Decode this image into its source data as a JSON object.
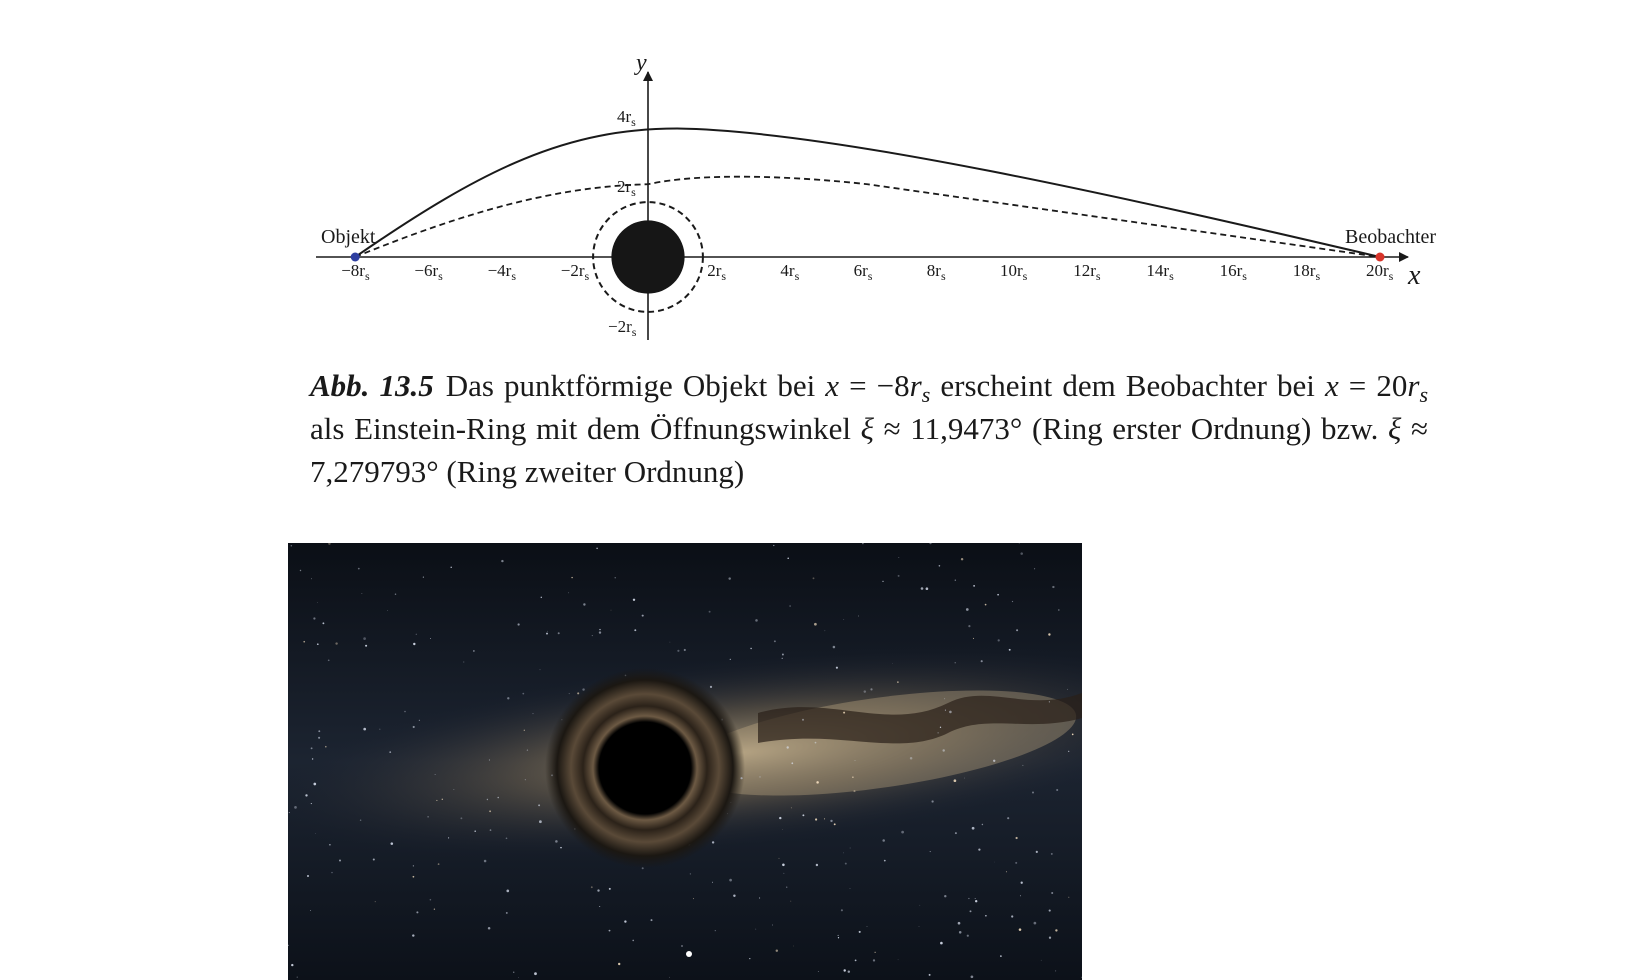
{
  "figure": {
    "axis_x_label": "x",
    "axis_y_label": "y",
    "x_ticks": [
      {
        "value": -8,
        "label": "−8r",
        "sub": "s"
      },
      {
        "value": -6,
        "label": "−6r",
        "sub": "s"
      },
      {
        "value": -4,
        "label": "−4r",
        "sub": "s"
      },
      {
        "value": -2,
        "label": "−2r",
        "sub": "s"
      },
      {
        "value": 2,
        "label": "2r",
        "sub": "s"
      },
      {
        "value": 4,
        "label": "4r",
        "sub": "s"
      },
      {
        "value": 6,
        "label": "6r",
        "sub": "s"
      },
      {
        "value": 8,
        "label": "8r",
        "sub": "s"
      },
      {
        "value": 10,
        "label": "10r",
        "sub": "s"
      },
      {
        "value": 12,
        "label": "12r",
        "sub": "s"
      },
      {
        "value": 14,
        "label": "14r",
        "sub": "s"
      },
      {
        "value": 16,
        "label": "16r",
        "sub": "s"
      },
      {
        "value": 18,
        "label": "18r",
        "sub": "s"
      },
      {
        "value": 20,
        "label": "20r",
        "sub": "s"
      }
    ],
    "y_ticks": [
      {
        "value": 4,
        "label": "4r",
        "sub": "s"
      },
      {
        "value": 2,
        "label": "2r",
        "sub": "s"
      },
      {
        "value": -2,
        "label": "−2r",
        "sub": "s"
      }
    ],
    "object_label": "Objekt",
    "observer_label": "Beobachter",
    "object_x": -8,
    "observer_x": 20,
    "object_color": "#2e3fa0",
    "observer_color": "#d8342a",
    "black_hole_radius": 1,
    "photon_sphere_radius": 1.5,
    "ray_first_order_max_y": 3.67,
    "ray_second_order_max_y": 2.25
  },
  "caption": {
    "label": "Abb. 13.5",
    "t1": "Das punktförmige Objekt bei ",
    "x": "x",
    "t2": " = −8",
    "r": "r",
    "s": "s",
    "t3": " erscheint dem Beobachter bei ",
    "t4": " = 20",
    "t5": " als Einstein-Ring mit dem Öffnungswinkel ",
    "xi": "ξ",
    "t6": " ≈ 11,9473° (Ring erster Ordnung) bzw. ",
    "t7": " ≈ 7,279793° (Ring zweiter Ordnung)"
  },
  "photo": {
    "colors": {
      "sky_dark": "#0a0f18",
      "milky_way": "#b8a07a",
      "dust": "#3a2c20"
    }
  }
}
